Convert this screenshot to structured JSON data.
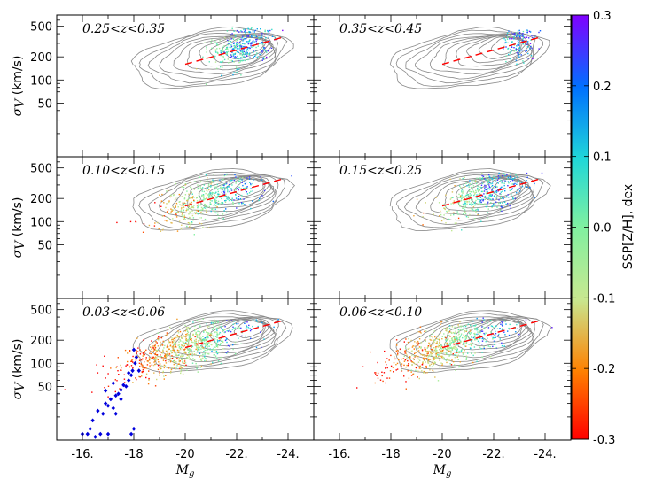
{
  "chart_data": {
    "type": "scatter",
    "panel_grid": {
      "rows": 3,
      "cols": 2
    },
    "xlim": [
      -15,
      -25
    ],
    "ylim_log": [
      10,
      700
    ],
    "x_ticks": [
      -16,
      -18,
      -20,
      -22,
      -24
    ],
    "x_tick_labels": [
      "-16.",
      "-18",
      "-20",
      "-22.",
      "-24."
    ],
    "y_ticks": [
      50,
      100,
      200,
      500
    ],
    "y_tick_labels": [
      "50",
      "100",
      "200",
      "500"
    ],
    "xlabel": "M_g",
    "ylabel": "σ_V (km/s)",
    "ylabel_symbol": "σ",
    "ylabel_sub": "V",
    "ylabel_unit": " (km/s)",
    "xlabel_symbol": "M",
    "xlabel_sub": "g",
    "colorbar": {
      "label": "SSP[Z/H], dex",
      "ticks": [
        0.3,
        0.2,
        0.1,
        0.0,
        -0.1,
        -0.2,
        -0.3
      ],
      "tick_labels": [
        "0.3",
        "0.2",
        "0.1",
        "0.0",
        "-0.1",
        "-0.2",
        "-0.3"
      ],
      "range": [
        -0.3,
        0.3
      ],
      "colors": [
        "#ff0000",
        "#ff7f00",
        "#c8e6a0",
        "#70f0a0",
        "#20d0e0",
        "#0080ff",
        "#8000ff"
      ]
    },
    "panels": [
      {
        "label": "0.25<z<0.35",
        "row": 0,
        "col": 0,
        "mg_range": [
          -20.8,
          -23.5
        ],
        "sigma_range": [
          90,
          480
        ],
        "n_points": 380
      },
      {
        "label": "0.35<z<0.45",
        "row": 0,
        "col": 1,
        "mg_range": [
          -22.3,
          -23.6
        ],
        "sigma_range": [
          130,
          450
        ],
        "n_points": 160
      },
      {
        "label": "0.10<z<0.15",
        "row": 1,
        "col": 0,
        "mg_range": [
          -18.9,
          -22.8
        ],
        "sigma_range": [
          70,
          420
        ],
        "n_points": 520
      },
      {
        "label": "0.15<z<0.25",
        "row": 1,
        "col": 1,
        "mg_range": [
          -19.8,
          -23.3
        ],
        "sigma_range": [
          80,
          430
        ],
        "n_points": 460
      },
      {
        "label": "0.03<z<0.06",
        "row": 2,
        "col": 0,
        "mg_range": [
          -17.4,
          -22.6
        ],
        "sigma_range": [
          40,
          380
        ],
        "n_points": 850
      },
      {
        "label": "0.06<z<0.10",
        "row": 2,
        "col": 1,
        "mg_range": [
          -17.8,
          -22.6
        ],
        "sigma_range": [
          50,
          390
        ],
        "n_points": 750
      }
    ],
    "reference_line": {
      "style": "dashed",
      "color": "#ff0000",
      "x": [
        -20,
        -23.8
      ],
      "y": [
        160,
        360
      ]
    },
    "low_mass_points": {
      "color": "#0000dd",
      "marker": "diamond",
      "panel": "0.03<z<0.06",
      "x": [
        -16.0,
        -16.2,
        -16.3,
        -16.4,
        -16.6,
        -16.8,
        -16.9,
        -17.0,
        -17.1,
        -17.2,
        -17.3,
        -17.4,
        -17.5,
        -17.6,
        -17.7,
        -17.8,
        -17.9,
        -17.95,
        -18.0,
        -18.1,
        -18.2,
        -17.0,
        -16.5,
        -17.5,
        -18.05,
        -17.8,
        -17.3,
        -16.7,
        -17.9,
        -18.0,
        -17.2,
        -16.9
      ],
      "y": [
        12,
        12,
        14,
        18,
        24,
        22,
        30,
        28,
        34,
        26,
        38,
        40,
        45,
        52,
        50,
        60,
        70,
        80,
        150,
        120,
        80,
        12,
        11,
        34,
        100,
        75,
        22,
        12,
        12,
        14,
        55,
        44
      ]
    }
  }
}
